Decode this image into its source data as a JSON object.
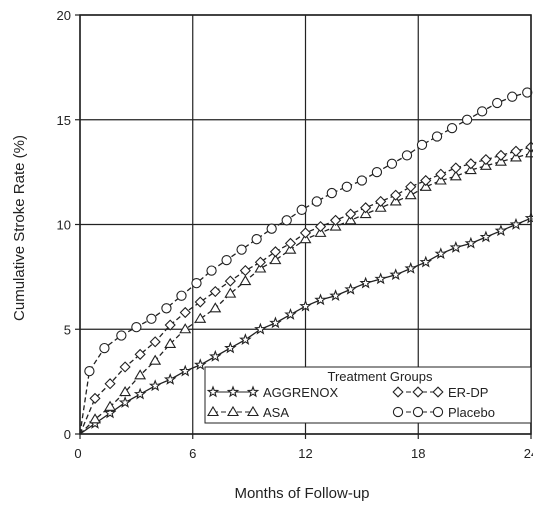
{
  "chart_data": {
    "type": "line",
    "xlabel": "Months of Follow-up",
    "ylabel": "Cumulative Stroke Rate (%)",
    "xlim": [
      0,
      24
    ],
    "ylim": [
      0,
      20
    ],
    "xticks": [
      0,
      6,
      12,
      18,
      24
    ],
    "yticks": [
      0,
      5,
      10,
      15,
      20
    ],
    "grid": true,
    "legend": {
      "title": "Treatment Groups",
      "placement": "bottom-right",
      "entries": [
        "AGGRENOX",
        "ASA",
        "ER-DP",
        "Placebo"
      ]
    },
    "series": [
      {
        "name": "AGGRENOX",
        "marker": "star",
        "x": [
          0,
          0.8,
          1.6,
          2.4,
          3.2,
          4.0,
          4.8,
          5.6,
          6.4,
          7.2,
          8.0,
          8.8,
          9.6,
          10.4,
          11.2,
          12.0,
          12.8,
          13.6,
          14.4,
          15.2,
          16.0,
          16.8,
          17.6,
          18.4,
          19.2,
          20.0,
          20.8,
          21.6,
          22.4,
          23.2,
          24.0
        ],
        "y": [
          0,
          0.5,
          1.0,
          1.5,
          1.9,
          2.3,
          2.6,
          3.0,
          3.3,
          3.7,
          4.1,
          4.5,
          5.0,
          5.3,
          5.7,
          6.1,
          6.4,
          6.6,
          6.9,
          7.2,
          7.4,
          7.6,
          7.9,
          8.2,
          8.6,
          8.9,
          9.1,
          9.4,
          9.7,
          10.0,
          10.3
        ]
      },
      {
        "name": "ASA",
        "marker": "triangle",
        "x": [
          0,
          0.8,
          1.6,
          2.4,
          3.2,
          4.0,
          4.8,
          5.6,
          6.4,
          7.2,
          8.0,
          8.8,
          9.6,
          10.4,
          11.2,
          12.0,
          12.8,
          13.6,
          14.4,
          15.2,
          16.0,
          16.8,
          17.6,
          18.4,
          19.2,
          20.0,
          20.8,
          21.6,
          22.4,
          23.2,
          24.0
        ],
        "y": [
          0,
          0.7,
          1.3,
          2.0,
          2.8,
          3.5,
          4.3,
          5.0,
          5.5,
          6.0,
          6.7,
          7.3,
          7.9,
          8.3,
          8.8,
          9.3,
          9.6,
          9.9,
          10.2,
          10.5,
          10.8,
          11.1,
          11.4,
          11.8,
          12.1,
          12.3,
          12.6,
          12.8,
          13.0,
          13.2,
          13.4
        ]
      },
      {
        "name": "ER-DP",
        "marker": "diamond",
        "x": [
          0,
          0.8,
          1.6,
          2.4,
          3.2,
          4.0,
          4.8,
          5.6,
          6.4,
          7.2,
          8.0,
          8.8,
          9.6,
          10.4,
          11.2,
          12.0,
          12.8,
          13.6,
          14.4,
          15.2,
          16.0,
          16.8,
          17.6,
          18.4,
          19.2,
          20.0,
          20.8,
          21.6,
          22.4,
          23.2,
          24.0
        ],
        "y": [
          0,
          1.7,
          2.4,
          3.2,
          3.8,
          4.4,
          5.2,
          5.8,
          6.3,
          6.8,
          7.3,
          7.8,
          8.2,
          8.7,
          9.1,
          9.6,
          9.9,
          10.2,
          10.5,
          10.8,
          11.1,
          11.4,
          11.8,
          12.1,
          12.4,
          12.7,
          12.9,
          13.1,
          13.3,
          13.5,
          13.7
        ]
      },
      {
        "name": "Placebo",
        "marker": "circle",
        "x": [
          0,
          0.5,
          1.3,
          2.2,
          3.0,
          3.8,
          4.6,
          5.4,
          6.2,
          7.0,
          7.8,
          8.6,
          9.4,
          10.2,
          11.0,
          11.8,
          12.6,
          13.4,
          14.2,
          15.0,
          15.8,
          16.6,
          17.4,
          18.2,
          19.0,
          19.8,
          20.6,
          21.4,
          22.2,
          23.0,
          23.8
        ],
        "y": [
          0,
          3.0,
          4.1,
          4.7,
          5.1,
          5.5,
          6.0,
          6.6,
          7.2,
          7.8,
          8.3,
          8.8,
          9.3,
          9.8,
          10.2,
          10.7,
          11.1,
          11.5,
          11.8,
          12.1,
          12.5,
          12.9,
          13.3,
          13.8,
          14.2,
          14.6,
          15.0,
          15.4,
          15.8,
          16.1,
          16.3
        ]
      }
    ]
  }
}
